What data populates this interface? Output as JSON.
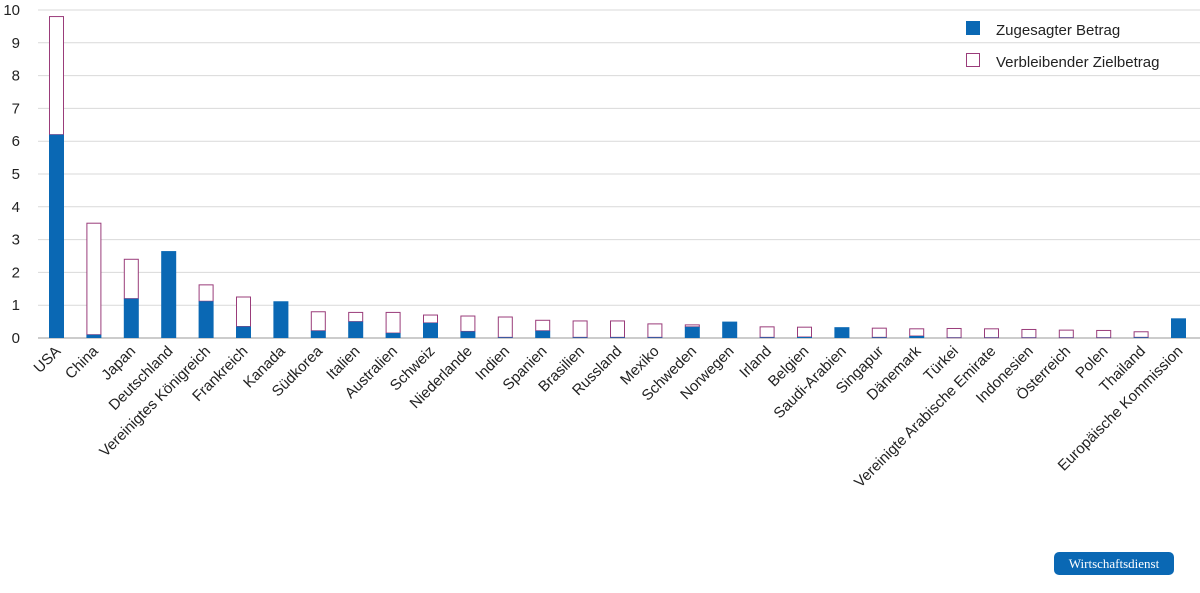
{
  "colors": {
    "committed": "#0a68b4",
    "remaining_stroke": "#9a3c7a",
    "grid": "#d9d9d9",
    "axis": "#999999",
    "badge": "#0a68b4"
  },
  "branding": {
    "label": "Wirtschaftsdienst"
  },
  "chart_data": {
    "type": "bar",
    "stacked": true,
    "legend_position": "top-right",
    "grid": true,
    "ylim": [
      0,
      10
    ],
    "yticks": [
      "0",
      "1",
      "2",
      "3",
      "4",
      "5",
      "6",
      "7",
      "8",
      "9",
      "10"
    ],
    "categories": [
      "USA",
      "China",
      "Japan",
      "Deutschland",
      "Vereinigtes Königreich",
      "Frankreich",
      "Kanada",
      "Südkorea",
      "Italien",
      "Australien",
      "Schweiz",
      "Niederlande",
      "Indien",
      "Spanien",
      "Brasilien",
      "Russland",
      "Mexiko",
      "Schweden",
      "Norwegen",
      "Irland",
      "Belgien",
      "Saudi-Arabien",
      "Singapur",
      "Dänemark",
      "Türkei",
      "Vereinigte Arabische Emirate",
      "Indonesien",
      "Österreich",
      "Polen",
      "Thailand",
      "Europäische Kommission"
    ],
    "series": [
      {
        "name": "Zugesagter Betrag",
        "values": [
          6.2,
          0.1,
          1.2,
          2.65,
          1.12,
          0.35,
          1.12,
          0.22,
          0.5,
          0.15,
          0.46,
          0.2,
          0.02,
          0.22,
          0.02,
          0.02,
          0.02,
          0.34,
          0.5,
          0.02,
          0.03,
          0.33,
          0.02,
          0.06,
          0.01,
          0.01,
          0.01,
          0.01,
          0.01,
          0.02,
          0.6
        ]
      },
      {
        "name": "Verbleibender Zielbetrag",
        "values": [
          3.6,
          3.4,
          1.2,
          0.0,
          0.5,
          0.9,
          0.0,
          0.58,
          0.28,
          0.63,
          0.24,
          0.47,
          0.62,
          0.32,
          0.5,
          0.5,
          0.41,
          0.06,
          0.0,
          0.32,
          0.3,
          0.0,
          0.28,
          0.22,
          0.28,
          0.27,
          0.25,
          0.23,
          0.22,
          0.17,
          0.0
        ]
      }
    ]
  }
}
